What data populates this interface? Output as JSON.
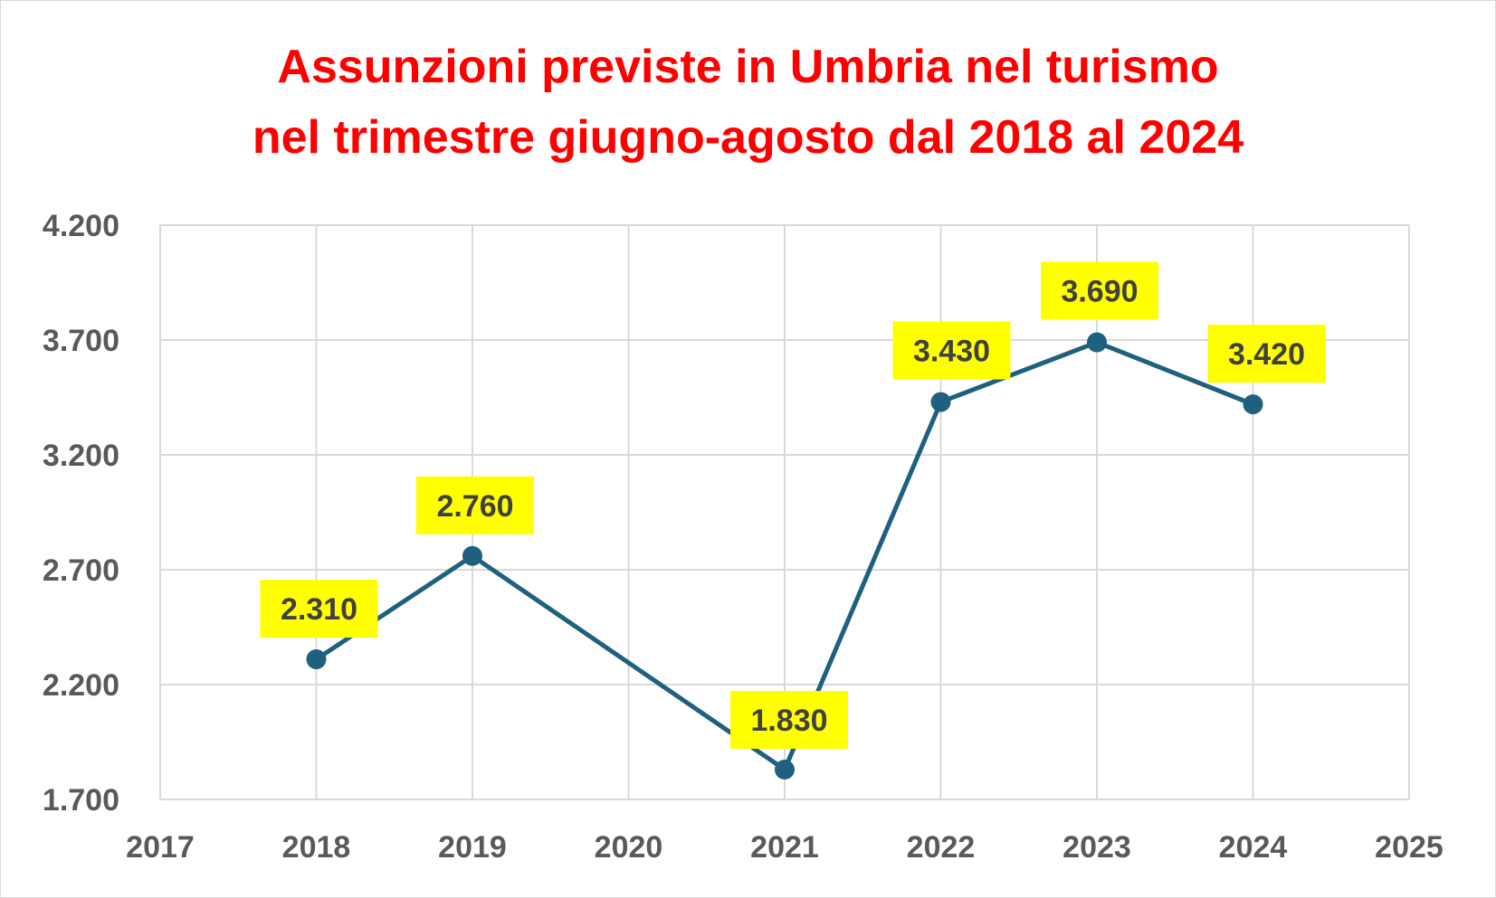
{
  "chart_data": {
    "type": "line",
    "title_lines": [
      "Assunzioni previste in Umbria nel turismo",
      "nel trimestre giugno-agosto dal 2018 al 2024"
    ],
    "title": "Assunzioni previste in Umbria nel turismo nel trimestre giugno-agosto dal 2018 al 2024",
    "xlabel": "",
    "ylabel": "",
    "xlim": [
      2017,
      2025
    ],
    "ylim": [
      1700,
      4200
    ],
    "x_ticks": [
      2017,
      2018,
      2019,
      2020,
      2021,
      2022,
      2023,
      2024,
      2025
    ],
    "x_tick_labels": [
      "2017",
      "2018",
      "2019",
      "2020",
      "2021",
      "2022",
      "2023",
      "2024",
      "2025"
    ],
    "y_ticks": [
      1700,
      2200,
      2700,
      3200,
      3700,
      4200
    ],
    "y_tick_labels": [
      "1.700",
      "2.200",
      "2.700",
      "3.200",
      "3.700",
      "4.200"
    ],
    "grid": true,
    "legend": "none",
    "series": [
      {
        "x": [
          2018,
          2019,
          2021,
          2022,
          2023,
          2024
        ],
        "values": [
          2310,
          2760,
          1830,
          3430,
          3690,
          3420
        ],
        "labels": [
          "2.310",
          "2.760",
          "1.830",
          "3.430",
          "3.690",
          "3.420"
        ],
        "color": "#1f5f7f",
        "marker": "circle"
      }
    ],
    "data_label_background": "#ffff00",
    "title_color": "#ff0000",
    "grid_color": "#d9d9d9"
  }
}
